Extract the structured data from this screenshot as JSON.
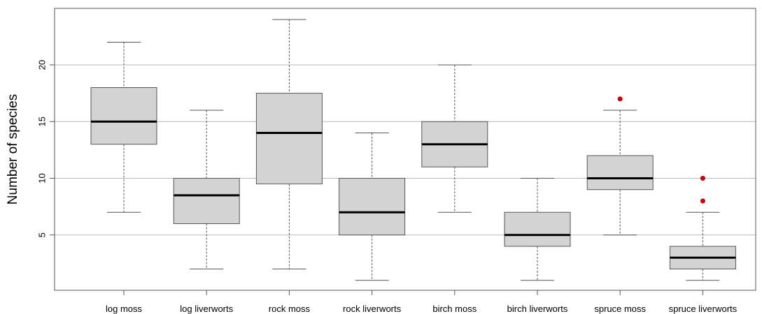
{
  "chart_data": {
    "type": "box",
    "title": "",
    "xlabel": "",
    "ylabel": "Number of species",
    "ylim": [
      0,
      25
    ],
    "yticks": [
      5,
      10,
      15,
      20
    ],
    "grid": "horizontal",
    "categories": [
      "log moss",
      "log liverworts",
      "rock moss",
      "rock liverworts",
      "birch moss",
      "birch liverworts",
      "spruce moss",
      "spruce liverworts"
    ],
    "boxes": [
      {
        "min": 7,
        "q1": 13,
        "median": 15,
        "q3": 18,
        "max": 22,
        "outliers": []
      },
      {
        "min": 2,
        "q1": 6,
        "median": 8.5,
        "q3": 10,
        "max": 16,
        "outliers": []
      },
      {
        "min": 2,
        "q1": 9.5,
        "median": 14,
        "q3": 17.5,
        "max": 24,
        "outliers": []
      },
      {
        "min": 1,
        "q1": 5,
        "median": 7,
        "q3": 10,
        "max": 14,
        "outliers": []
      },
      {
        "min": 7,
        "q1": 11,
        "median": 13,
        "q3": 15,
        "max": 20,
        "outliers": []
      },
      {
        "min": 1,
        "q1": 4,
        "median": 5,
        "q3": 7,
        "max": 10,
        "outliers": []
      },
      {
        "min": 5,
        "q1": 9,
        "median": 10,
        "q3": 12,
        "max": 16,
        "outliers": [
          17
        ]
      },
      {
        "min": 1,
        "q1": 2,
        "median": 3,
        "q3": 4,
        "max": 7,
        "outliers": [
          8,
          10
        ]
      }
    ],
    "colors": {
      "box_fill": "#d3d3d3",
      "box_stroke": "#555555",
      "median": "#000000",
      "whisker": "#555555",
      "outlier": "#cc0000",
      "grid": "#b8b8b8"
    }
  }
}
